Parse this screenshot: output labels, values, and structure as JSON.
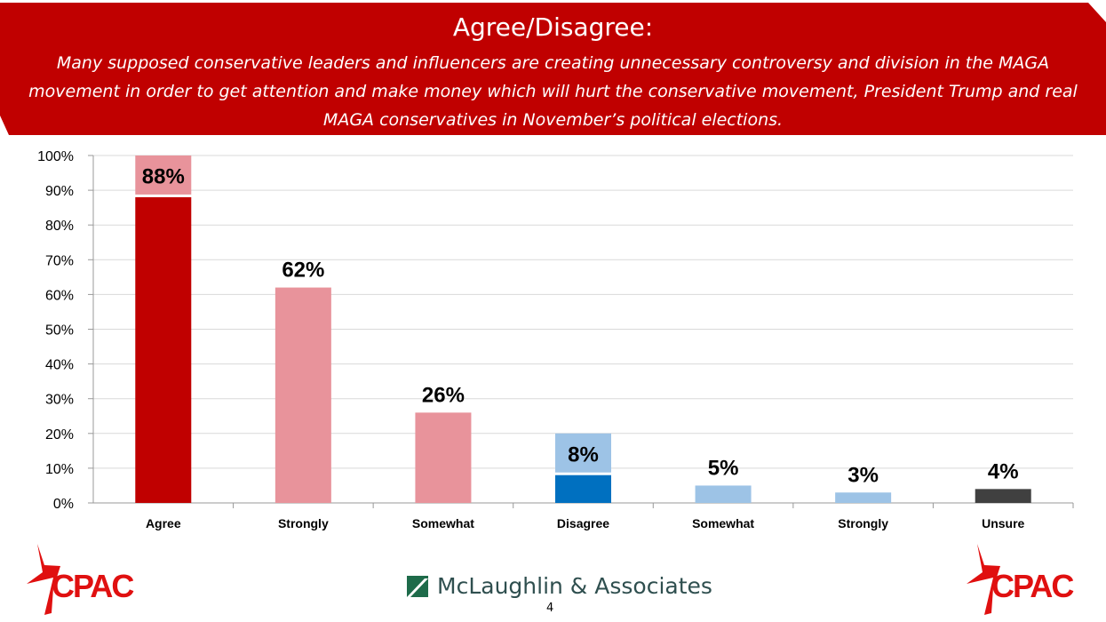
{
  "header": {
    "title": "Agree/Disagree:",
    "subtitle": "Many supposed conservative leaders and influencers are creating unnecessary controversy and division in the MAGA movement in order to get attention and make money which will hurt the conservative movement, President Trump and real MAGA conservatives in November’s political elections.",
    "color": "#c00000"
  },
  "chart_data": {
    "type": "bar",
    "categories": [
      "Agree",
      "Strongly",
      "Somewhat",
      "Disagree",
      "Somewhat",
      "Strongly",
      "Unsure"
    ],
    "values": [
      88,
      62,
      26,
      8,
      5,
      3,
      4
    ],
    "data_labels": [
      "88%",
      "62%",
      "26%",
      "8%",
      "5%",
      "3%",
      "4%"
    ],
    "colors": [
      "#c00000",
      "#e8939b",
      "#e8939b",
      "#0070c0",
      "#9dc3e6",
      "#9dc3e6",
      "#404040"
    ],
    "highlight_label_colors": {
      "0": "#e8939b",
      "3": "#9dc3e6"
    },
    "ylim": [
      0,
      100
    ],
    "yticks": [
      "0%",
      "10%",
      "20%",
      "30%",
      "40%",
      "50%",
      "60%",
      "70%",
      "80%",
      "90%",
      "100%"
    ],
    "grid": true,
    "title": "",
    "xlabel": "",
    "ylabel": ""
  },
  "footer": {
    "left_logo": "CPAC",
    "right_logo": "CPAC",
    "pollster": "McLaughlin & Associates",
    "page_number": "4"
  }
}
